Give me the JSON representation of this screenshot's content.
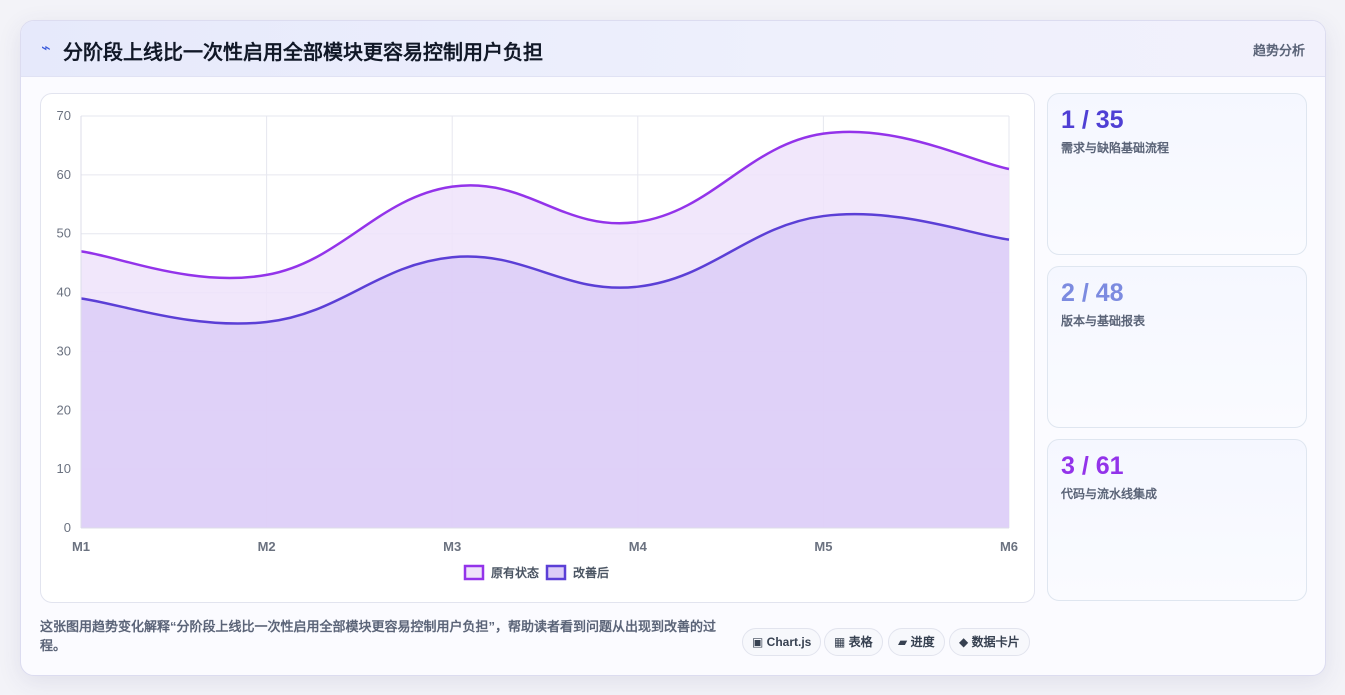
{
  "header": {
    "icon": "zap-icon",
    "icon_glyph": "⌁",
    "title": "分阶段上线比一次性启用全部模块更容易控制用户负担",
    "tag": "趋势分析"
  },
  "chart_data": {
    "type": "area",
    "x": [
      "M1",
      "M2",
      "M3",
      "M4",
      "M5",
      "M6"
    ],
    "ylim": [
      0,
      70
    ],
    "yticks": [
      0,
      10,
      20,
      30,
      40,
      50,
      60,
      70
    ],
    "grid": true,
    "legend_position": "bottom",
    "series": [
      {
        "name": "原有状态",
        "values": [
          47,
          43,
          58,
          52,
          67,
          61
        ],
        "color": "#9333ea",
        "fill": "#efe3fa"
      },
      {
        "name": "改善后",
        "values": [
          39,
          35,
          46,
          41,
          53,
          49
        ],
        "color": "#5b3fd6",
        "fill": "#dccdf7"
      }
    ]
  },
  "stats": [
    {
      "value": "1 / 35",
      "label": "需求与缺陷基础流程",
      "color": "#4f3fd4"
    },
    {
      "value": "2 / 48",
      "label": "版本与基础报表",
      "color": "#7c8be0"
    },
    {
      "value": "3 / 61",
      "label": "代码与流水线集成",
      "color": "#9333ea"
    }
  ],
  "description": "这张图用趋势变化解释“分阶段上线比一次性启用全部模块更容易控制用户负担”，帮助读者看到问题从出现到改善的过程。",
  "pills": [
    {
      "label": "▣ Chart.js",
      "icon": "chart-icon"
    },
    {
      "label": "▦ 表格",
      "icon": "table-icon"
    },
    {
      "label": "▰ 进度",
      "icon": "progress-icon"
    },
    {
      "label": "◆ 数据卡片",
      "icon": "diamond-icon"
    }
  ]
}
